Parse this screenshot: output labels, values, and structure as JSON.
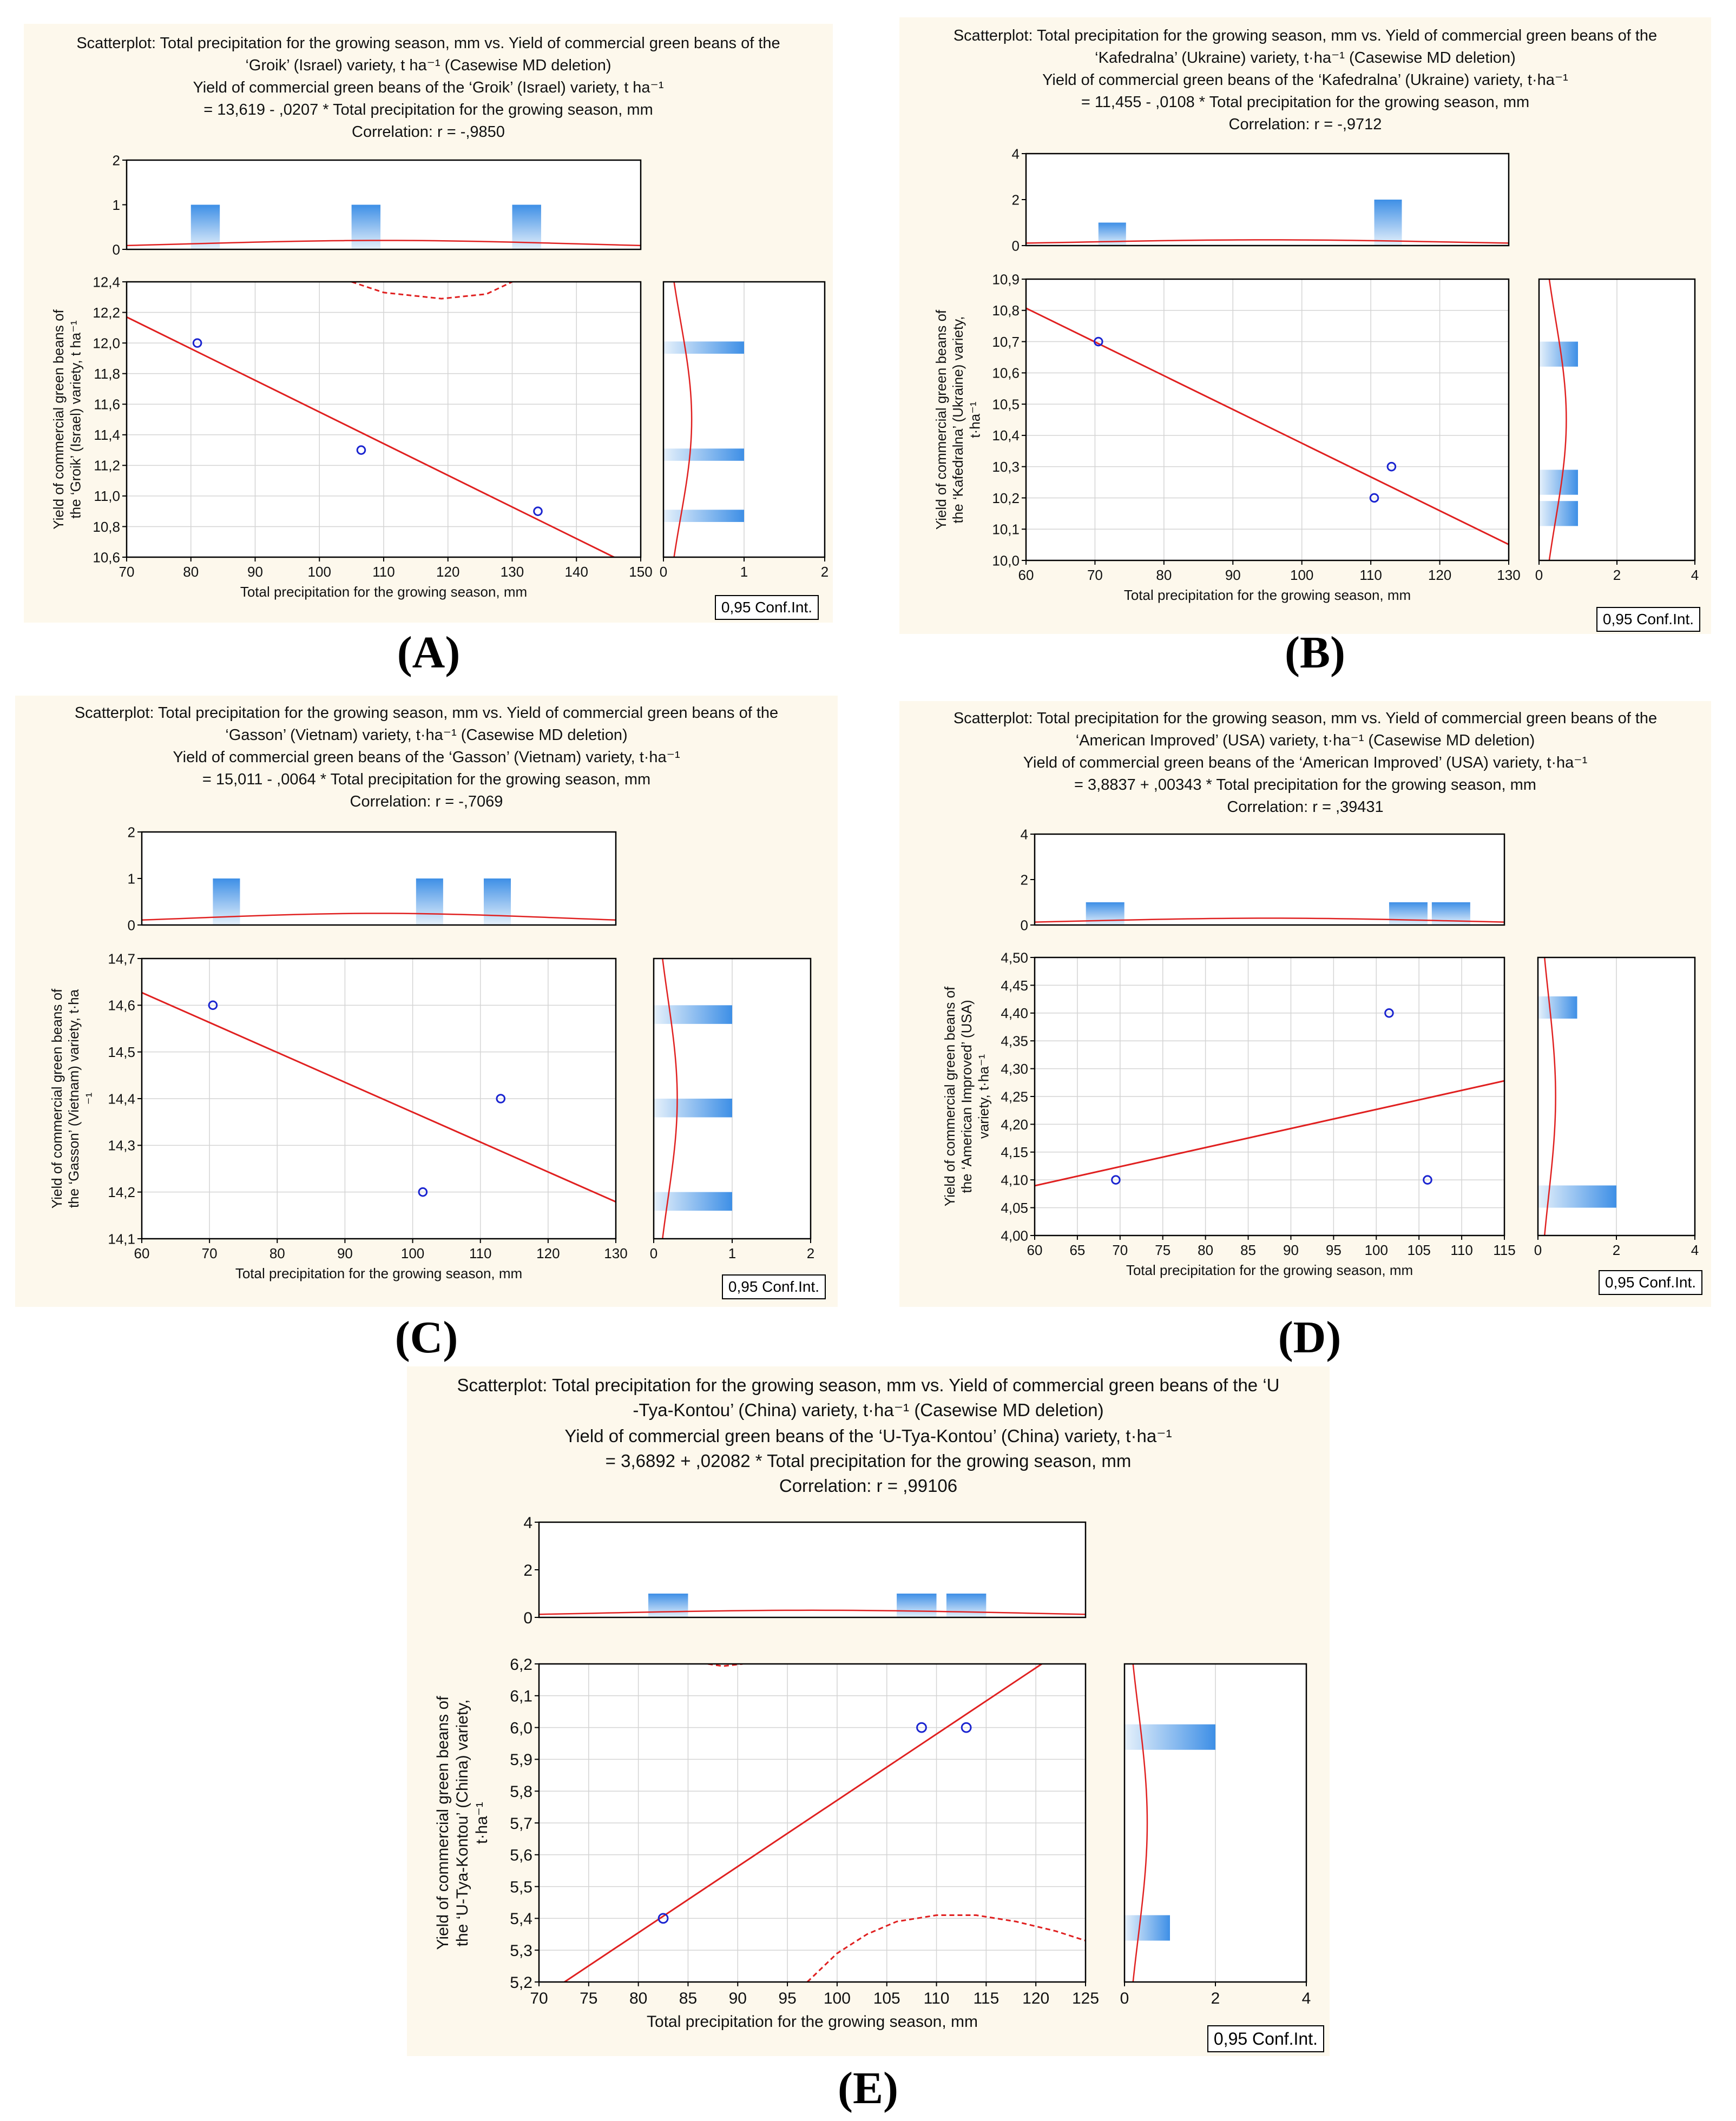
{
  "colors": {
    "panel_bg": "#fdf8ec",
    "fit_line": "#e02020",
    "point": "#1a24d0",
    "bar_top": "#3e8fe6",
    "bar_bottom": "#e6f1fb",
    "grid": "#d4d4d4"
  },
  "ci_label": "0,95 Conf.Int.",
  "chart_data": [
    {
      "panel": "(A)",
      "type": "scatter",
      "title": [
        "Scatterplot: Total precipitation for the growing season, mm vs. Yield of commercial green beans of the",
        "‘Groik’ (Israel) variety, t ha⁻¹ (Casewise MD deletion)"
      ],
      "equation": [
        "Yield of commercial green beans of the ‘Groik’ (Israel) variety, t ha⁻¹",
        "= 13,619 - ,0207  * Total precipitation for the growing season, mm"
      ],
      "correlation": "Correlation: r = -,9850",
      "xlabel": "Total precipitation for the growing season, mm",
      "ylabel": [
        "Yield of commercial green beans of",
        "the ‘Groik’ (Israel) variety, t ha⁻¹"
      ],
      "xlim": [
        70,
        150
      ],
      "xticks": [
        "70",
        "80",
        "90",
        "100",
        "110",
        "120",
        "130",
        "140",
        "150"
      ],
      "ylim": [
        10.6,
        12.4
      ],
      "yticks": [
        "10,6",
        "10,8",
        "11,0",
        "11,2",
        "11,4",
        "11,6",
        "11,8",
        "12,0",
        "12,2",
        "12,4"
      ],
      "points": [
        {
          "x": 81,
          "y": 12.0
        },
        {
          "x": 106.5,
          "y": 11.3
        },
        {
          "x": 134,
          "y": 10.9
        }
      ],
      "fit": {
        "intercept": 13.619,
        "slope": -0.0207
      },
      "conf_band": [
        [
          105,
          12.4
        ],
        [
          110,
          12.33
        ],
        [
          119,
          12.29
        ],
        [
          126,
          12.32
        ],
        [
          130,
          12.4
        ]
      ],
      "xhist": {
        "ylim": [
          0,
          2
        ],
        "yticks": [
          "0",
          "1",
          "2"
        ],
        "bars": [
          {
            "from": 80,
            "to": 84.5,
            "h": 1
          },
          {
            "from": 105,
            "to": 109.5,
            "h": 1
          },
          {
            "from": 130,
            "to": 134.5,
            "h": 1
          }
        ],
        "curve_peak": 0.2
      },
      "yhist": {
        "xlim": [
          0,
          2
        ],
        "xticks": [
          "0",
          "1",
          "2"
        ],
        "bars": [
          {
            "from": 11.93,
            "to": 12.01,
            "w": 1
          },
          {
            "from": 11.23,
            "to": 11.31,
            "w": 1
          },
          {
            "from": 10.83,
            "to": 10.91,
            "w": 1
          }
        ],
        "curve_peak": 0.35
      }
    },
    {
      "panel": "(B)",
      "type": "scatter",
      "title": [
        "Scatterplot: Total precipitation for the growing season, mm vs. Yield of commercial green beans of the",
        "‘Kafedralna’ (Ukraine) variety, t·ha⁻¹ (Casewise MD deletion)"
      ],
      "equation": [
        "Yield of commercial green beans of the ‘Kafedralna’ (Ukraine) variety, t·ha⁻¹",
        "= 11,455 - ,0108  * Total precipitation for the growing season, mm"
      ],
      "correlation": "Correlation: r = -,9712",
      "xlabel": "Total precipitation for the growing season, mm",
      "ylabel": [
        "Yield of commercial green beans of",
        "the ‘Kafedralna’ (Ukraine) variety,",
        "t·ha⁻¹"
      ],
      "xlim": [
        60,
        130
      ],
      "xticks": [
        "60",
        "70",
        "80",
        "90",
        "100",
        "110",
        "120",
        "130"
      ],
      "ylim": [
        10.0,
        10.9
      ],
      "yticks": [
        "10,0",
        "10,1",
        "10,2",
        "10,3",
        "10,4",
        "10,5",
        "10,6",
        "10,7",
        "10,8",
        "10,9"
      ],
      "points": [
        {
          "x": 70.5,
          "y": 10.7
        },
        {
          "x": 110.5,
          "y": 10.2
        },
        {
          "x": 113,
          "y": 10.3
        }
      ],
      "fit": {
        "intercept": 11.455,
        "slope": -0.0108
      },
      "conf_band": [],
      "xhist": {
        "ylim": [
          0,
          4
        ],
        "yticks": [
          "0",
          "2",
          "4"
        ],
        "bars": [
          {
            "from": 70.5,
            "to": 74.5,
            "h": 1
          },
          {
            "from": 110.5,
            "to": 114.5,
            "h": 2
          }
        ],
        "curve_peak": 0.25
      },
      "yhist": {
        "xlim": [
          0,
          4
        ],
        "xticks": [
          "0",
          "2",
          "4"
        ],
        "bars": [
          {
            "from": 10.62,
            "to": 10.7,
            "w": 1
          },
          {
            "from": 10.21,
            "to": 10.29,
            "w": 1
          },
          {
            "from": 10.11,
            "to": 10.19,
            "w": 1
          }
        ],
        "curve_peak": 0.7
      }
    },
    {
      "panel": "(C)",
      "type": "scatter",
      "title": [
        "Scatterplot: Total precipitation for the growing season, mm vs. Yield of commercial green beans of the",
        "‘Gasson’ (Vietnam) variety, t·ha⁻¹ (Casewise MD deletion)"
      ],
      "equation": [
        "Yield of commercial green beans of the ‘Gasson’ (Vietnam) variety, t·ha⁻¹",
        "= 15,011 - ,0064  * Total precipitation for the growing season, mm"
      ],
      "correlation": "Correlation: r = -,7069",
      "xlabel": "Total precipitation for the growing season, mm",
      "ylabel": [
        "Yield of commercial green beans of",
        "the ‘Gasson’ (Vietnam) variety, t·ha",
        "⁻¹"
      ],
      "xlim": [
        60,
        130
      ],
      "xticks": [
        "60",
        "70",
        "80",
        "90",
        "100",
        "110",
        "120",
        "130"
      ],
      "ylim": [
        14.1,
        14.7
      ],
      "yticks": [
        "14,1",
        "14,2",
        "14,3",
        "14,4",
        "14,5",
        "14,6",
        "14,7"
      ],
      "points": [
        {
          "x": 70.5,
          "y": 14.6
        },
        {
          "x": 101.5,
          "y": 14.2
        },
        {
          "x": 113,
          "y": 14.4
        }
      ],
      "fit": {
        "intercept": 15.011,
        "slope": -0.0064
      },
      "conf_band": [],
      "xhist": {
        "ylim": [
          0,
          2
        ],
        "yticks": [
          "0",
          "1",
          "2"
        ],
        "bars": [
          {
            "from": 70.5,
            "to": 74.5,
            "h": 1
          },
          {
            "from": 100.5,
            "to": 104.5,
            "h": 1
          },
          {
            "from": 110.5,
            "to": 114.5,
            "h": 1
          }
        ],
        "curve_peak": 0.25
      },
      "yhist": {
        "xlim": [
          0,
          2
        ],
        "xticks": [
          "0",
          "1",
          "2"
        ],
        "bars": [
          {
            "from": 14.56,
            "to": 14.6,
            "w": 1
          },
          {
            "from": 14.36,
            "to": 14.4,
            "w": 1
          },
          {
            "from": 14.16,
            "to": 14.2,
            "w": 1
          }
        ],
        "curve_peak": 0.3
      }
    },
    {
      "panel": "(D)",
      "type": "scatter",
      "title": [
        "Scatterplot: Total precipitation for the growing season, mm vs. Yield of commercial green beans of the",
        "‘American Improved’ (USA) variety, t·ha⁻¹ (Casewise MD deletion)"
      ],
      "equation": [
        "Yield of commercial green beans of the ‘American Improved’ (USA) variety, t·ha⁻¹",
        "= 3,8837 + ,00343 * Total precipitation for the growing season, mm"
      ],
      "correlation": "Correlation: r = ,39431",
      "xlabel": "Total precipitation for the growing season, mm",
      "ylabel": [
        "Yield of commercial green beans of",
        "the ‘American Improved’ (USA)",
        "variety, t·ha⁻¹"
      ],
      "xlim": [
        60,
        115
      ],
      "xticks": [
        "60",
        "65",
        "70",
        "75",
        "80",
        "85",
        "90",
        "95",
        "100",
        "105",
        "110",
        "115"
      ],
      "ylim": [
        4.0,
        4.5
      ],
      "yticks": [
        "4,00",
        "4,05",
        "4,10",
        "4,15",
        "4,20",
        "4,25",
        "4,30",
        "4,35",
        "4,40",
        "4,45",
        "4,50"
      ],
      "points": [
        {
          "x": 69.5,
          "y": 4.1
        },
        {
          "x": 101.5,
          "y": 4.4
        },
        {
          "x": 106,
          "y": 4.1
        }
      ],
      "fit": {
        "intercept": 3.8837,
        "slope": 0.00343
      },
      "conf_band": [],
      "xhist": {
        "ylim": [
          0,
          4
        ],
        "yticks": [
          "0",
          "2",
          "4"
        ],
        "bars": [
          {
            "from": 66,
            "to": 70.5,
            "h": 1
          },
          {
            "from": 101.5,
            "to": 106,
            "h": 1
          },
          {
            "from": 106.5,
            "to": 111,
            "h": 1
          }
        ],
        "curve_peak": 0.3
      },
      "yhist": {
        "xlim": [
          0,
          4
        ],
        "xticks": [
          "0",
          "2",
          "4"
        ],
        "bars": [
          {
            "from": 4.39,
            "to": 4.43,
            "w": 1
          },
          {
            "from": 4.05,
            "to": 4.09,
            "w": 2
          }
        ],
        "curve_peak": 0.45
      }
    },
    {
      "panel": "(E)",
      "type": "scatter",
      "title": [
        "Scatterplot: Total precipitation for the growing season, mm vs. Yield of commercial green beans of the ‘U",
        "-Tya-Kontou’ (China) variety, t·ha⁻¹ (Casewise MD deletion)"
      ],
      "equation": [
        "Yield of commercial green beans of the ‘U-Tya-Kontou’ (China) variety, t·ha⁻¹",
        "= 3,6892 + ,02082 * Total precipitation for the growing season, mm"
      ],
      "correlation": "Correlation: r = ,99106",
      "xlabel": "Total precipitation for the growing season, mm",
      "ylabel": [
        "Yield of commercial green beans of",
        "the ‘U-Tya-Kontou’ (China) variety,",
        "t·ha⁻¹"
      ],
      "xlim": [
        70,
        125
      ],
      "xticks": [
        "70",
        "75",
        "80",
        "85",
        "90",
        "95",
        "100",
        "105",
        "110",
        "115",
        "120",
        "125"
      ],
      "ylim": [
        5.2,
        6.2
      ],
      "yticks": [
        "5,2",
        "5,3",
        "5,4",
        "5,5",
        "5,6",
        "5,7",
        "5,8",
        "5,9",
        "6,0",
        "6,1",
        "6,2"
      ],
      "points": [
        {
          "x": 82.5,
          "y": 5.4
        },
        {
          "x": 108.5,
          "y": 6.0
        },
        {
          "x": 113,
          "y": 6.0
        }
      ],
      "fit": {
        "intercept": 3.6892,
        "slope": 0.02082
      },
      "conf_band": [
        [
          87,
          6.2
        ],
        [
          88.5,
          6.193
        ],
        [
          90.5,
          6.2
        ]
      ],
      "conf_band_lower": [
        [
          97,
          5.2
        ],
        [
          100,
          5.29
        ],
        [
          103,
          5.35
        ],
        [
          106,
          5.39
        ],
        [
          110,
          5.41
        ],
        [
          114,
          5.41
        ],
        [
          118,
          5.39
        ],
        [
          122,
          5.36
        ],
        [
          125,
          5.33
        ]
      ],
      "xhist": {
        "ylim": [
          0,
          4
        ],
        "yticks": [
          "0",
          "2",
          "4"
        ],
        "bars": [
          {
            "from": 81,
            "to": 85,
            "h": 1
          },
          {
            "from": 106,
            "to": 110,
            "h": 1
          },
          {
            "from": 111,
            "to": 115,
            "h": 1
          }
        ],
        "curve_peak": 0.3
      },
      "yhist": {
        "xlim": [
          0,
          4
        ],
        "xticks": [
          "0",
          "2",
          "4"
        ],
        "bars": [
          {
            "from": 5.93,
            "to": 6.01,
            "w": 2
          },
          {
            "from": 5.33,
            "to": 5.41,
            "w": 1
          }
        ],
        "curve_peak": 0.5
      }
    }
  ]
}
